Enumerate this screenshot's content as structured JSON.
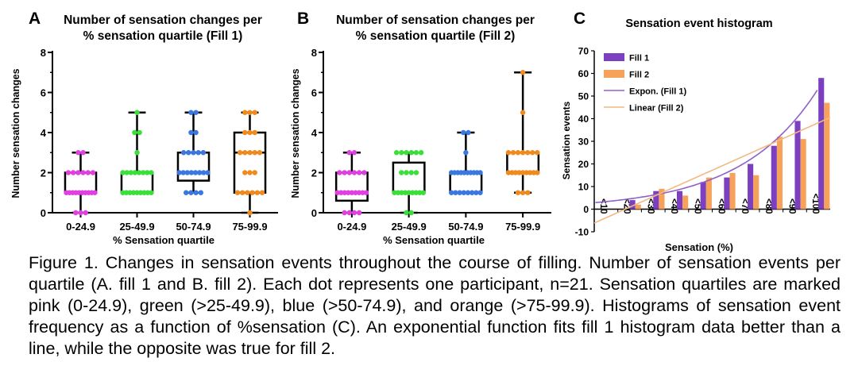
{
  "figure": {
    "caption": "Figure 1. Changes in sensation events throughout the course of filling. Number of sensation events per quartile (A. fill 1 and B. fill 2). Each dot represents one participant, n=21. Sensation quartiles are marked pink (0-24.9), green (>25-49.9), blue (>50-74.9), and orange (>75-99.9). Histograms of sensation event frequency as a function of %sensation (C). An exponential function fits fill 1 histogram data better than a line, while the opposite was true for fill 2."
  },
  "chart_data": [
    {
      "panel": "A",
      "type": "box",
      "title_line1": "Number of sensation changes per",
      "title_line2": "% sensation quartile (Fill 1)",
      "xlabel": "% Sensation quartile",
      "ylabel": "Number sensation changes",
      "ylim": [
        0,
        8
      ],
      "yticks": [
        "0",
        "2",
        "4",
        "6",
        "8"
      ],
      "categories": [
        "0-24.9",
        "25-49.9",
        "50-74.9",
        "75-99.9"
      ],
      "box_colors": [
        "#e040e0",
        "#3adf3a",
        "#3a78e0",
        "#f08a1c"
      ],
      "boxes": [
        {
          "min": 0,
          "q1": 1,
          "median": 1,
          "q3": 2,
          "max": 3
        },
        {
          "min": 1,
          "q1": 1,
          "median": 1,
          "q3": 2,
          "max": 5
        },
        {
          "min": 1,
          "q1": 1.6,
          "median": 2,
          "q3": 3,
          "max": 5
        },
        {
          "min": 0,
          "q1": 1,
          "median": 3,
          "q3": 4,
          "max": 5
        }
      ],
      "points": [
        [
          0,
          0,
          0,
          1,
          1,
          1,
          1,
          1,
          1,
          1,
          1,
          1,
          1,
          2,
          2,
          2,
          2,
          2,
          2,
          3,
          3
        ],
        [
          1,
          1,
          1,
          1,
          1,
          1,
          1,
          1,
          1,
          2,
          2,
          2,
          2,
          2,
          2,
          2,
          2,
          3,
          4,
          4,
          5
        ],
        [
          1,
          1,
          1,
          1,
          2,
          2,
          2,
          2,
          2,
          2,
          2,
          2,
          3,
          3,
          3,
          3,
          3,
          4,
          4,
          5,
          5
        ],
        [
          0,
          1,
          1,
          1,
          1,
          1,
          1,
          2,
          2,
          2,
          3,
          3,
          3,
          3,
          3,
          4,
          4,
          4,
          5,
          5,
          5
        ]
      ]
    },
    {
      "panel": "B",
      "type": "box",
      "title_line1": "Number of sensation changes per",
      "title_line2": "% sensation quartile (Fill 2)",
      "xlabel": "% Sensation quartile",
      "ylabel": "Number sensation changes",
      "ylim": [
        0,
        8
      ],
      "yticks": [
        "0",
        "2",
        "4",
        "6",
        "8"
      ],
      "categories": [
        "0-24.9",
        "25-49.9",
        "50-74.9",
        "75-99.9"
      ],
      "box_colors": [
        "#e040e0",
        "#3adf3a",
        "#3a78e0",
        "#f08a1c"
      ],
      "boxes": [
        {
          "min": 0,
          "q1": 0.6,
          "median": 1,
          "q3": 2,
          "max": 3
        },
        {
          "min": 0,
          "q1": 1,
          "median": 1,
          "q3": 2.5,
          "max": 3
        },
        {
          "min": 1,
          "q1": 1,
          "median": 2,
          "q3": 2,
          "max": 4
        },
        {
          "min": 1,
          "q1": 2,
          "median": 2,
          "q3": 3,
          "max": 7
        }
      ],
      "points": [
        [
          0,
          0,
          0,
          0,
          1,
          1,
          1,
          1,
          1,
          1,
          1,
          1,
          1,
          2,
          2,
          2,
          2,
          2,
          2,
          3,
          3
        ],
        [
          0,
          0,
          1,
          1,
          1,
          1,
          1,
          1,
          1,
          1,
          1,
          2,
          2,
          2,
          2,
          3,
          3,
          3,
          3,
          3,
          3
        ],
        [
          1,
          1,
          1,
          1,
          1,
          1,
          1,
          1,
          2,
          2,
          2,
          2,
          2,
          2,
          2,
          2,
          2,
          2,
          3,
          4,
          4
        ],
        [
          1,
          1,
          1,
          2,
          2,
          2,
          2,
          2,
          2,
          2,
          2,
          2,
          3,
          3,
          3,
          3,
          3,
          3,
          3,
          5,
          7
        ]
      ]
    },
    {
      "panel": "C",
      "type": "bar",
      "title": "Sensation event histogram",
      "xlabel": "Sensation (%)",
      "ylabel": "Sensation events",
      "ylim": [
        -10,
        70
      ],
      "yticks": [
        "-10",
        "0",
        "10",
        "20",
        "30",
        "40",
        "50",
        "60",
        "70"
      ],
      "categories": [
        "<10",
        "<20",
        "<30",
        "<40",
        "<50",
        "<60",
        "<70",
        "<80",
        "<90",
        "<100"
      ],
      "series": [
        {
          "name": "Fill 1",
          "color": "#7b3fbf",
          "values": [
            0,
            4,
            8,
            8,
            12,
            14,
            20,
            28,
            39,
            58
          ]
        },
        {
          "name": "Fill 2",
          "color": "#f7a25a",
          "values": [
            0,
            2,
            9,
            6,
            14,
            16,
            15,
            32,
            31,
            47
          ]
        }
      ],
      "trendlines": [
        {
          "name": "Expon. (Fill 1)",
          "color": "#9060c8"
        },
        {
          "name": "Linear (Fill 2)",
          "color": "#f4b884"
        }
      ],
      "legend_position": "top-left"
    }
  ]
}
